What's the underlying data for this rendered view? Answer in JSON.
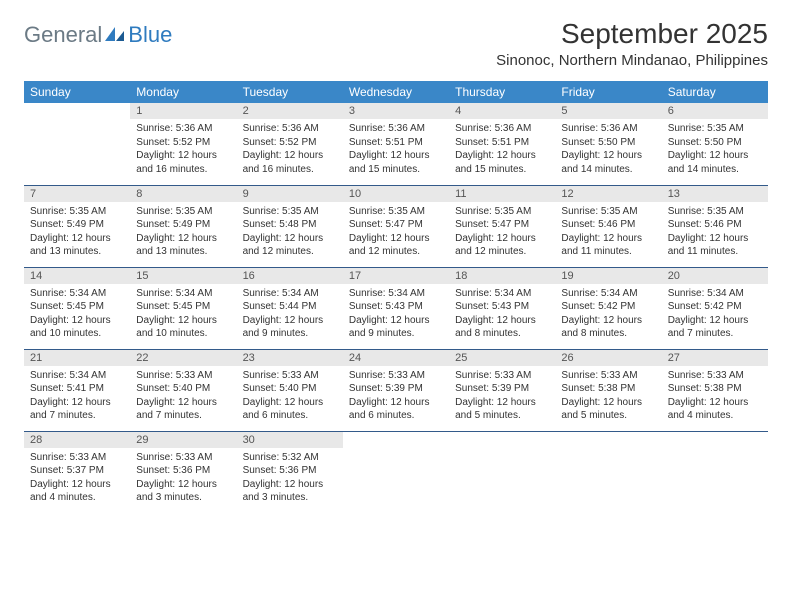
{
  "logo": {
    "general": "General",
    "blue": "Blue"
  },
  "title": "September 2025",
  "location": "Sinonoc, Northern Mindanao, Philippines",
  "colors": {
    "header_bg": "#3a87c8",
    "header_text": "#ffffff",
    "daynum_bg": "#e8e8e8",
    "row_border": "#335a8a",
    "logo_gray": "#6b7a85",
    "logo_blue": "#2f7bbf"
  },
  "weekdays": [
    "Sunday",
    "Monday",
    "Tuesday",
    "Wednesday",
    "Thursday",
    "Friday",
    "Saturday"
  ],
  "weeks": [
    [
      null,
      {
        "n": "1",
        "sr": "Sunrise: 5:36 AM",
        "ss": "Sunset: 5:52 PM",
        "dl1": "Daylight: 12 hours",
        "dl2": "and 16 minutes."
      },
      {
        "n": "2",
        "sr": "Sunrise: 5:36 AM",
        "ss": "Sunset: 5:52 PM",
        "dl1": "Daylight: 12 hours",
        "dl2": "and 16 minutes."
      },
      {
        "n": "3",
        "sr": "Sunrise: 5:36 AM",
        "ss": "Sunset: 5:51 PM",
        "dl1": "Daylight: 12 hours",
        "dl2": "and 15 minutes."
      },
      {
        "n": "4",
        "sr": "Sunrise: 5:36 AM",
        "ss": "Sunset: 5:51 PM",
        "dl1": "Daylight: 12 hours",
        "dl2": "and 15 minutes."
      },
      {
        "n": "5",
        "sr": "Sunrise: 5:36 AM",
        "ss": "Sunset: 5:50 PM",
        "dl1": "Daylight: 12 hours",
        "dl2": "and 14 minutes."
      },
      {
        "n": "6",
        "sr": "Sunrise: 5:35 AM",
        "ss": "Sunset: 5:50 PM",
        "dl1": "Daylight: 12 hours",
        "dl2": "and 14 minutes."
      }
    ],
    [
      {
        "n": "7",
        "sr": "Sunrise: 5:35 AM",
        "ss": "Sunset: 5:49 PM",
        "dl1": "Daylight: 12 hours",
        "dl2": "and 13 minutes."
      },
      {
        "n": "8",
        "sr": "Sunrise: 5:35 AM",
        "ss": "Sunset: 5:49 PM",
        "dl1": "Daylight: 12 hours",
        "dl2": "and 13 minutes."
      },
      {
        "n": "9",
        "sr": "Sunrise: 5:35 AM",
        "ss": "Sunset: 5:48 PM",
        "dl1": "Daylight: 12 hours",
        "dl2": "and 12 minutes."
      },
      {
        "n": "10",
        "sr": "Sunrise: 5:35 AM",
        "ss": "Sunset: 5:47 PM",
        "dl1": "Daylight: 12 hours",
        "dl2": "and 12 minutes."
      },
      {
        "n": "11",
        "sr": "Sunrise: 5:35 AM",
        "ss": "Sunset: 5:47 PM",
        "dl1": "Daylight: 12 hours",
        "dl2": "and 12 minutes."
      },
      {
        "n": "12",
        "sr": "Sunrise: 5:35 AM",
        "ss": "Sunset: 5:46 PM",
        "dl1": "Daylight: 12 hours",
        "dl2": "and 11 minutes."
      },
      {
        "n": "13",
        "sr": "Sunrise: 5:35 AM",
        "ss": "Sunset: 5:46 PM",
        "dl1": "Daylight: 12 hours",
        "dl2": "and 11 minutes."
      }
    ],
    [
      {
        "n": "14",
        "sr": "Sunrise: 5:34 AM",
        "ss": "Sunset: 5:45 PM",
        "dl1": "Daylight: 12 hours",
        "dl2": "and 10 minutes."
      },
      {
        "n": "15",
        "sr": "Sunrise: 5:34 AM",
        "ss": "Sunset: 5:45 PM",
        "dl1": "Daylight: 12 hours",
        "dl2": "and 10 minutes."
      },
      {
        "n": "16",
        "sr": "Sunrise: 5:34 AM",
        "ss": "Sunset: 5:44 PM",
        "dl1": "Daylight: 12 hours",
        "dl2": "and 9 minutes."
      },
      {
        "n": "17",
        "sr": "Sunrise: 5:34 AM",
        "ss": "Sunset: 5:43 PM",
        "dl1": "Daylight: 12 hours",
        "dl2": "and 9 minutes."
      },
      {
        "n": "18",
        "sr": "Sunrise: 5:34 AM",
        "ss": "Sunset: 5:43 PM",
        "dl1": "Daylight: 12 hours",
        "dl2": "and 8 minutes."
      },
      {
        "n": "19",
        "sr": "Sunrise: 5:34 AM",
        "ss": "Sunset: 5:42 PM",
        "dl1": "Daylight: 12 hours",
        "dl2": "and 8 minutes."
      },
      {
        "n": "20",
        "sr": "Sunrise: 5:34 AM",
        "ss": "Sunset: 5:42 PM",
        "dl1": "Daylight: 12 hours",
        "dl2": "and 7 minutes."
      }
    ],
    [
      {
        "n": "21",
        "sr": "Sunrise: 5:34 AM",
        "ss": "Sunset: 5:41 PM",
        "dl1": "Daylight: 12 hours",
        "dl2": "and 7 minutes."
      },
      {
        "n": "22",
        "sr": "Sunrise: 5:33 AM",
        "ss": "Sunset: 5:40 PM",
        "dl1": "Daylight: 12 hours",
        "dl2": "and 7 minutes."
      },
      {
        "n": "23",
        "sr": "Sunrise: 5:33 AM",
        "ss": "Sunset: 5:40 PM",
        "dl1": "Daylight: 12 hours",
        "dl2": "and 6 minutes."
      },
      {
        "n": "24",
        "sr": "Sunrise: 5:33 AM",
        "ss": "Sunset: 5:39 PM",
        "dl1": "Daylight: 12 hours",
        "dl2": "and 6 minutes."
      },
      {
        "n": "25",
        "sr": "Sunrise: 5:33 AM",
        "ss": "Sunset: 5:39 PM",
        "dl1": "Daylight: 12 hours",
        "dl2": "and 5 minutes."
      },
      {
        "n": "26",
        "sr": "Sunrise: 5:33 AM",
        "ss": "Sunset: 5:38 PM",
        "dl1": "Daylight: 12 hours",
        "dl2": "and 5 minutes."
      },
      {
        "n": "27",
        "sr": "Sunrise: 5:33 AM",
        "ss": "Sunset: 5:38 PM",
        "dl1": "Daylight: 12 hours",
        "dl2": "and 4 minutes."
      }
    ],
    [
      {
        "n": "28",
        "sr": "Sunrise: 5:33 AM",
        "ss": "Sunset: 5:37 PM",
        "dl1": "Daylight: 12 hours",
        "dl2": "and 4 minutes."
      },
      {
        "n": "29",
        "sr": "Sunrise: 5:33 AM",
        "ss": "Sunset: 5:36 PM",
        "dl1": "Daylight: 12 hours",
        "dl2": "and 3 minutes."
      },
      {
        "n": "30",
        "sr": "Sunrise: 5:32 AM",
        "ss": "Sunset: 5:36 PM",
        "dl1": "Daylight: 12 hours",
        "dl2": "and 3 minutes."
      },
      null,
      null,
      null,
      null
    ]
  ]
}
